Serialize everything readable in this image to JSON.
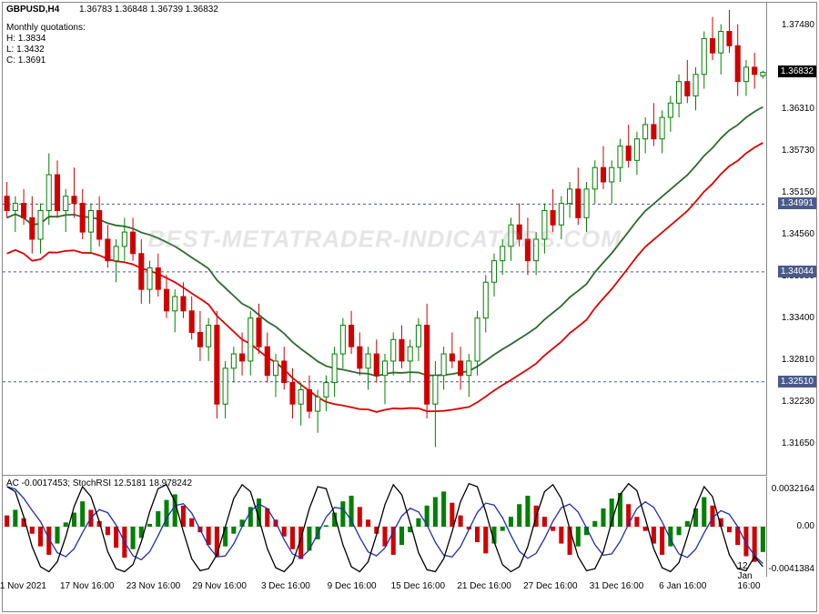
{
  "header": {
    "symbol_tf": "GBPUSD,H4",
    "ohlc": "1.36783 1.36848 1.36739 1.36832",
    "monthly_title": "Monthly quotations:",
    "monthly_h": "H: 1.3834",
    "monthly_l": "L: 1.3432",
    "monthly_c": "C: 1.3691"
  },
  "indicator_header": {
    "text": "AC -0.0017453; StochRSI 12.5181 18.978242"
  },
  "watermark": "BEST-METATRADER-INDICATORS.COM",
  "price_badge": "1.36832",
  "y_main": {
    "min": 1.312,
    "max": 1.378,
    "ticks": [
      1.3748,
      1.36832,
      1.3631,
      1.3573,
      1.3515,
      1.3456,
      1.3398,
      1.334,
      1.3281,
      1.3223,
      1.3165
    ]
  },
  "y_indicator": {
    "ticks": [
      0.0032164,
      0.0,
      -0.0041384
    ]
  },
  "x_labels": [
    "11 Nov 2021",
    "17 Nov 16:00",
    "23 Nov 16:00",
    "29 Nov 16:00",
    "3 Dec 16:00",
    "9 Dec 16:00",
    "15 Dec 16:00",
    "21 Dec 16:00",
    "27 Dec 16:00",
    "31 Dec 16:00",
    "6 Jan 16:00",
    "12 Jan 16:00"
  ],
  "levels": [
    1.34991,
    1.34044,
    1.3251
  ],
  "colors": {
    "up": "#008000",
    "down": "#d00000",
    "ma1": "#2d6b2d",
    "ma2": "#e00000",
    "stoch": "#2030b0",
    "hist_pos": "#008000",
    "hist_neg": "#d00000",
    "border": "#888888",
    "hline": "#4a5a8a"
  },
  "candles": [
    {
      "o": 1.351,
      "h": 1.353,
      "l": 1.348,
      "c": 1.349
    },
    {
      "o": 1.349,
      "h": 1.351,
      "l": 1.346,
      "c": 1.35
    },
    {
      "o": 1.35,
      "h": 1.352,
      "l": 1.347,
      "c": 1.348
    },
    {
      "o": 1.348,
      "h": 1.351,
      "l": 1.343,
      "c": 1.345
    },
    {
      "o": 1.345,
      "h": 1.35,
      "l": 1.343,
      "c": 1.349
    },
    {
      "o": 1.349,
      "h": 1.357,
      "l": 1.347,
      "c": 1.354
    },
    {
      "o": 1.354,
      "h": 1.356,
      "l": 1.348,
      "c": 1.349
    },
    {
      "o": 1.349,
      "h": 1.352,
      "l": 1.346,
      "c": 1.351
    },
    {
      "o": 1.351,
      "h": 1.355,
      "l": 1.348,
      "c": 1.35
    },
    {
      "o": 1.35,
      "h": 1.352,
      "l": 1.345,
      "c": 1.346
    },
    {
      "o": 1.346,
      "h": 1.35,
      "l": 1.343,
      "c": 1.349
    },
    {
      "o": 1.349,
      "h": 1.351,
      "l": 1.344,
      "c": 1.345
    },
    {
      "o": 1.345,
      "h": 1.347,
      "l": 1.341,
      "c": 1.342
    },
    {
      "o": 1.342,
      "h": 1.345,
      "l": 1.339,
      "c": 1.344
    },
    {
      "o": 1.344,
      "h": 1.348,
      "l": 1.342,
      "c": 1.346
    },
    {
      "o": 1.346,
      "h": 1.348,
      "l": 1.342,
      "c": 1.343
    },
    {
      "o": 1.343,
      "h": 1.345,
      "l": 1.336,
      "c": 1.338
    },
    {
      "o": 1.338,
      "h": 1.342,
      "l": 1.336,
      "c": 1.341
    },
    {
      "o": 1.341,
      "h": 1.343,
      "l": 1.337,
      "c": 1.338
    },
    {
      "o": 1.338,
      "h": 1.34,
      "l": 1.334,
      "c": 1.335
    },
    {
      "o": 1.335,
      "h": 1.338,
      "l": 1.332,
      "c": 1.337
    },
    {
      "o": 1.337,
      "h": 1.339,
      "l": 1.334,
      "c": 1.335
    },
    {
      "o": 1.335,
      "h": 1.337,
      "l": 1.331,
      "c": 1.332
    },
    {
      "o": 1.332,
      "h": 1.335,
      "l": 1.328,
      "c": 1.33
    },
    {
      "o": 1.33,
      "h": 1.334,
      "l": 1.328,
      "c": 1.333
    },
    {
      "o": 1.333,
      "h": 1.335,
      "l": 1.32,
      "c": 1.322
    },
    {
      "o": 1.322,
      "h": 1.328,
      "l": 1.32,
      "c": 1.327
    },
    {
      "o": 1.327,
      "h": 1.33,
      "l": 1.325,
      "c": 1.329
    },
    {
      "o": 1.329,
      "h": 1.332,
      "l": 1.326,
      "c": 1.328
    },
    {
      "o": 1.328,
      "h": 1.335,
      "l": 1.326,
      "c": 1.334
    },
    {
      "o": 1.334,
      "h": 1.336,
      "l": 1.329,
      "c": 1.33
    },
    {
      "o": 1.33,
      "h": 1.332,
      "l": 1.325,
      "c": 1.326
    },
    {
      "o": 1.326,
      "h": 1.329,
      "l": 1.323,
      "c": 1.328
    },
    {
      "o": 1.328,
      "h": 1.33,
      "l": 1.324,
      "c": 1.325
    },
    {
      "o": 1.325,
      "h": 1.327,
      "l": 1.32,
      "c": 1.322
    },
    {
      "o": 1.322,
      "h": 1.325,
      "l": 1.319,
      "c": 1.324
    },
    {
      "o": 1.324,
      "h": 1.326,
      "l": 1.32,
      "c": 1.321
    },
    {
      "o": 1.321,
      "h": 1.324,
      "l": 1.318,
      "c": 1.323
    },
    {
      "o": 1.323,
      "h": 1.326,
      "l": 1.321,
      "c": 1.325
    },
    {
      "o": 1.325,
      "h": 1.33,
      "l": 1.323,
      "c": 1.329
    },
    {
      "o": 1.329,
      "h": 1.334,
      "l": 1.327,
      "c": 1.333
    },
    {
      "o": 1.333,
      "h": 1.335,
      "l": 1.329,
      "c": 1.33
    },
    {
      "o": 1.33,
      "h": 1.332,
      "l": 1.326,
      "c": 1.327
    },
    {
      "o": 1.327,
      "h": 1.33,
      "l": 1.324,
      "c": 1.329
    },
    {
      "o": 1.329,
      "h": 1.331,
      "l": 1.325,
      "c": 1.326
    },
    {
      "o": 1.326,
      "h": 1.329,
      "l": 1.322,
      "c": 1.328
    },
    {
      "o": 1.328,
      "h": 1.332,
      "l": 1.326,
      "c": 1.331
    },
    {
      "o": 1.331,
      "h": 1.333,
      "l": 1.327,
      "c": 1.328
    },
    {
      "o": 1.328,
      "h": 1.331,
      "l": 1.325,
      "c": 1.33
    },
    {
      "o": 1.33,
      "h": 1.334,
      "l": 1.328,
      "c": 1.333
    },
    {
      "o": 1.333,
      "h": 1.336,
      "l": 1.32,
      "c": 1.322
    },
    {
      "o": 1.322,
      "h": 1.328,
      "l": 1.316,
      "c": 1.326
    },
    {
      "o": 1.326,
      "h": 1.33,
      "l": 1.324,
      "c": 1.329
    },
    {
      "o": 1.329,
      "h": 1.332,
      "l": 1.327,
      "c": 1.328
    },
    {
      "o": 1.328,
      "h": 1.33,
      "l": 1.324,
      "c": 1.326
    },
    {
      "o": 1.326,
      "h": 1.329,
      "l": 1.323,
      "c": 1.328
    },
    {
      "o": 1.328,
      "h": 1.335,
      "l": 1.326,
      "c": 1.334
    },
    {
      "o": 1.334,
      "h": 1.34,
      "l": 1.332,
      "c": 1.339
    },
    {
      "o": 1.339,
      "h": 1.343,
      "l": 1.337,
      "c": 1.342
    },
    {
      "o": 1.342,
      "h": 1.345,
      "l": 1.34,
      "c": 1.344
    },
    {
      "o": 1.344,
      "h": 1.348,
      "l": 1.342,
      "c": 1.347
    },
    {
      "o": 1.347,
      "h": 1.35,
      "l": 1.344,
      "c": 1.345
    },
    {
      "o": 1.345,
      "h": 1.348,
      "l": 1.34,
      "c": 1.342
    },
    {
      "o": 1.342,
      "h": 1.346,
      "l": 1.34,
      "c": 1.345
    },
    {
      "o": 1.345,
      "h": 1.35,
      "l": 1.343,
      "c": 1.349
    },
    {
      "o": 1.349,
      "h": 1.352,
      "l": 1.346,
      "c": 1.347
    },
    {
      "o": 1.347,
      "h": 1.351,
      "l": 1.345,
      "c": 1.35
    },
    {
      "o": 1.35,
      "h": 1.353,
      "l": 1.348,
      "c": 1.352
    },
    {
      "o": 1.352,
      "h": 1.355,
      "l": 1.347,
      "c": 1.348
    },
    {
      "o": 1.348,
      "h": 1.353,
      "l": 1.346,
      "c": 1.352
    },
    {
      "o": 1.352,
      "h": 1.356,
      "l": 1.35,
      "c": 1.355
    },
    {
      "o": 1.355,
      "h": 1.358,
      "l": 1.352,
      "c": 1.353
    },
    {
      "o": 1.353,
      "h": 1.356,
      "l": 1.35,
      "c": 1.355
    },
    {
      "o": 1.355,
      "h": 1.359,
      "l": 1.353,
      "c": 1.358
    },
    {
      "o": 1.358,
      "h": 1.361,
      "l": 1.355,
      "c": 1.356
    },
    {
      "o": 1.356,
      "h": 1.36,
      "l": 1.354,
      "c": 1.359
    },
    {
      "o": 1.359,
      "h": 1.362,
      "l": 1.357,
      "c": 1.361
    },
    {
      "o": 1.361,
      "h": 1.364,
      "l": 1.358,
      "c": 1.359
    },
    {
      "o": 1.359,
      "h": 1.363,
      "l": 1.357,
      "c": 1.362
    },
    {
      "o": 1.362,
      "h": 1.365,
      "l": 1.36,
      "c": 1.364
    },
    {
      "o": 1.364,
      "h": 1.368,
      "l": 1.362,
      "c": 1.367
    },
    {
      "o": 1.367,
      "h": 1.37,
      "l": 1.364,
      "c": 1.365
    },
    {
      "o": 1.365,
      "h": 1.369,
      "l": 1.363,
      "c": 1.368
    },
    {
      "o": 1.368,
      "h": 1.374,
      "l": 1.366,
      "c": 1.373
    },
    {
      "o": 1.373,
      "h": 1.376,
      "l": 1.37,
      "c": 1.371
    },
    {
      "o": 1.371,
      "h": 1.375,
      "l": 1.368,
      "c": 1.374
    },
    {
      "o": 1.374,
      "h": 1.377,
      "l": 1.371,
      "c": 1.372
    },
    {
      "o": 1.372,
      "h": 1.375,
      "l": 1.365,
      "c": 1.367
    },
    {
      "o": 1.367,
      "h": 1.37,
      "l": 1.365,
      "c": 1.369
    },
    {
      "o": 1.369,
      "h": 1.371,
      "l": 1.366,
      "c": 1.368
    },
    {
      "o": 1.3678,
      "h": 1.3685,
      "l": 1.3674,
      "c": 1.3683
    }
  ],
  "ac_hist": [
    0.8,
    1.2,
    0.6,
    -0.5,
    -1.4,
    -2.0,
    -1.2,
    0.3,
    1.0,
    1.8,
    1.2,
    0.4,
    -0.6,
    -1.5,
    -2.2,
    -1.6,
    -0.8,
    0.2,
    1.1,
    1.9,
    2.3,
    1.5,
    0.6,
    -0.4,
    -1.3,
    -2.1,
    -1.4,
    -0.5,
    0.5,
    1.4,
    2.0,
    1.3,
    0.5,
    -0.7,
    -1.6,
    -2.3,
    -1.7,
    -0.9,
    0.1,
    1.0,
    1.8,
    2.2,
    1.4,
    0.5,
    -0.5,
    -1.4,
    -2.0,
    -1.3,
    -0.4,
    0.6,
    1.5,
    2.1,
    2.5,
    1.7,
    0.8,
    -0.2,
    -1.1,
    -1.9,
    -1.2,
    -0.3,
    0.7,
    1.6,
    2.2,
    1.5,
    0.7,
    -0.3,
    -1.2,
    -2.0,
    -1.4,
    -0.6,
    0.4,
    1.3,
    2.0,
    2.4,
    1.6,
    0.7,
    -0.3,
    -1.2,
    -2.0,
    -1.4,
    -0.6,
    0.4,
    1.3,
    2.1,
    1.5,
    0.6,
    -0.4,
    -1.3,
    -2.1,
    -2.5,
    -1.8
  ],
  "stoch_main": [
    90,
    85,
    60,
    30,
    10,
    5,
    15,
    40,
    70,
    90,
    80,
    55,
    25,
    8,
    5,
    12,
    35,
    65,
    88,
    92,
    75,
    45,
    18,
    6,
    8,
    22,
    50,
    78,
    92,
    85,
    58,
    28,
    9,
    5,
    14,
    38,
    68,
    90,
    88,
    62,
    32,
    10,
    5,
    15,
    42,
    72,
    92,
    82,
    54,
    24,
    7,
    5,
    18,
    45,
    75,
    93,
    90,
    65,
    35,
    12,
    5,
    10,
    30,
    60,
    85,
    92,
    78,
    48,
    20,
    6,
    8,
    25,
    55,
    82,
    93,
    86,
    58,
    28,
    9,
    5,
    14,
    40,
    70,
    90,
    80,
    50,
    22,
    8,
    6,
    20,
    10
  ]
}
